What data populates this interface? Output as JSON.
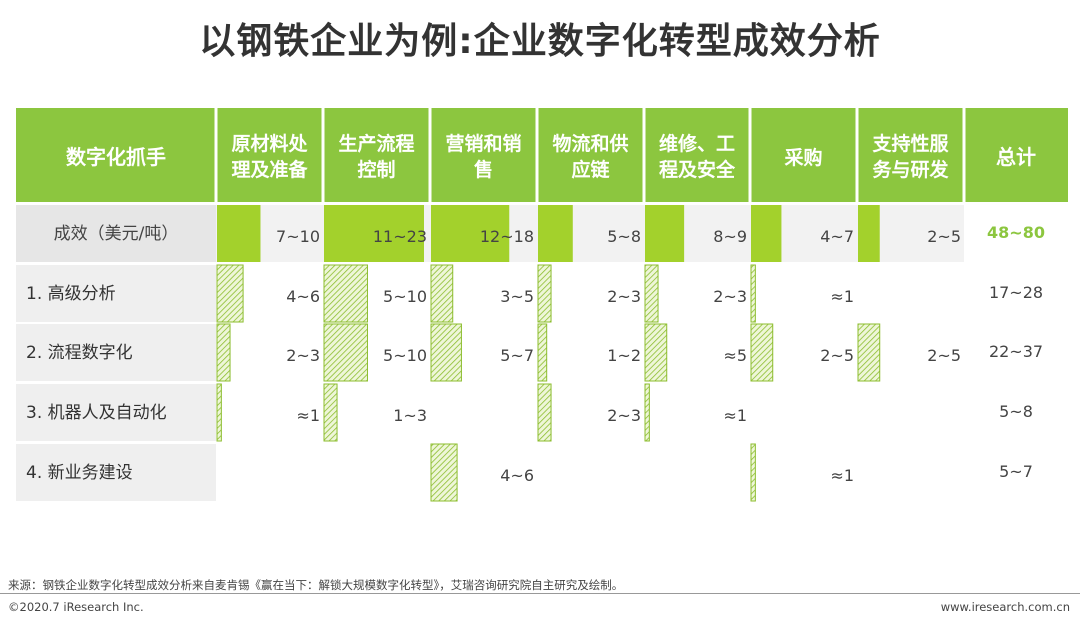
{
  "title": "以钢铁企业为例:企业数字化转型成效分析",
  "source": "来源：钢铁企业数字化转型成效分析来自麦肯锡《赢在当下：解锁大规模数字化转型》，艾瑞咨询研究院自主研究及绘制。",
  "copyright": "©2020.7 iResearch Inc.",
  "website": "www.iresearch.com.cn",
  "colors": {
    "header_green": "#8cc63f",
    "bar_green": "#a3d12c",
    "hatch_line": "#8cbd2e",
    "total_green": "#8cc63f",
    "label_bg": "#efefef",
    "effect_bg": "#e6e6e6"
  },
  "chart_data": {
    "type": "table",
    "corner_header": "数字化抓手",
    "columns": [
      {
        "name": "原材料处理及准备",
        "lines": [
          "原材料处",
          "理及准备"
        ]
      },
      {
        "name": "生产流程控制",
        "lines": [
          "生产流程",
          "控制"
        ]
      },
      {
        "name": "营销和销售",
        "lines": [
          "营销和销",
          "售"
        ]
      },
      {
        "name": "物流和供应链",
        "lines": [
          "物流和供",
          "应链"
        ]
      },
      {
        "name": "维修、工程及安全",
        "lines": [
          "维修、工",
          "程及安全"
        ]
      },
      {
        "name": "采购",
        "lines": [
          "采购"
        ]
      },
      {
        "name": "支持性服务与研发",
        "lines": [
          "支持性服",
          "务与研发"
        ]
      }
    ],
    "total_header": "总计",
    "rows": [
      {
        "label": "成效（美元/吨）",
        "style": "solid",
        "cells": [
          {
            "text": "7~10",
            "low": 7,
            "high": 10
          },
          {
            "text": "11~23",
            "low": 11,
            "high": 23
          },
          {
            "text": "12~18",
            "low": 12,
            "high": 18
          },
          {
            "text": "5~8",
            "low": 5,
            "high": 8
          },
          {
            "text": "8~9",
            "low": 8,
            "high": 9
          },
          {
            "text": "4~7",
            "low": 4,
            "high": 7
          },
          {
            "text": "2~5",
            "low": 2,
            "high": 5
          }
        ],
        "total": "48~80"
      },
      {
        "label": "1. 高级分析",
        "style": "hatch",
        "cells": [
          {
            "text": "4~6",
            "low": 4,
            "high": 6
          },
          {
            "text": "5~10",
            "low": 5,
            "high": 10
          },
          {
            "text": "3~5",
            "low": 3,
            "high": 5
          },
          {
            "text": "2~3",
            "low": 2,
            "high": 3
          },
          {
            "text": "2~3",
            "low": 2,
            "high": 3
          },
          {
            "text": "≈1",
            "low": 1,
            "high": 1
          },
          null
        ],
        "total": "17~28"
      },
      {
        "label": "2. 流程数字化",
        "style": "hatch",
        "cells": [
          {
            "text": "2~3",
            "low": 2,
            "high": 3
          },
          {
            "text": "5~10",
            "low": 5,
            "high": 10
          },
          {
            "text": "5~7",
            "low": 5,
            "high": 7
          },
          {
            "text": "1~2",
            "low": 1,
            "high": 2
          },
          {
            "text": "≈5",
            "low": 5,
            "high": 5
          },
          {
            "text": "2~5",
            "low": 2,
            "high": 5
          },
          {
            "text": "2~5",
            "low": 2,
            "high": 5
          }
        ],
        "total": "22~37"
      },
      {
        "label": "3. 机器人及自动化",
        "style": "hatch",
        "cells": [
          {
            "text": "≈1",
            "low": 1,
            "high": 1
          },
          {
            "text": "1~3",
            "low": 1,
            "high": 3
          },
          null,
          {
            "text": "2~3",
            "low": 2,
            "high": 3
          },
          {
            "text": "≈1",
            "low": 1,
            "high": 1
          },
          null,
          null
        ],
        "total": "5~8"
      },
      {
        "label": "4. 新业务建设",
        "style": "hatch",
        "cells": [
          null,
          null,
          {
            "text": "4~6",
            "low": 4,
            "high": 6
          },
          null,
          null,
          {
            "text": "≈1",
            "low": 1,
            "high": 1
          },
          null
        ],
        "total": "5~7"
      }
    ]
  }
}
